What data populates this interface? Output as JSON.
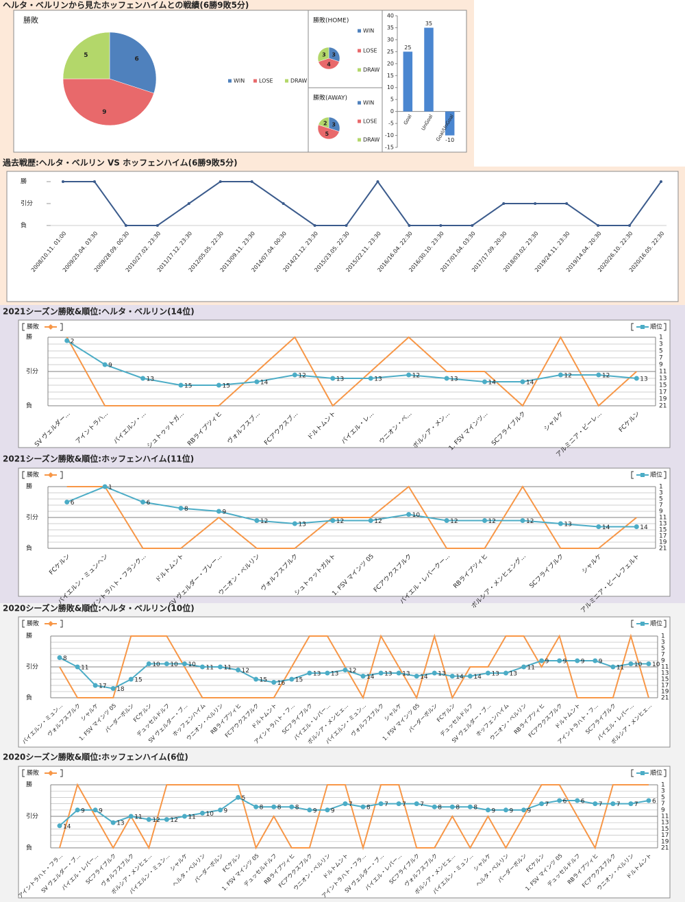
{
  "headings": [
    "ヘルタ・ベルリンから見たホッフェンハイムとの戦績(6勝9敗5分)",
    "過去戦歴:ヘルタ・ベルリン VS ホッフェンハイム(6勝9敗5分)",
    "2021シーズン勝敗&順位:ヘルタ・ベルリン(14位)",
    "2021シーズン勝敗&順位:ホッフェンハイム(11位)",
    "2020シーズン勝敗&順位:ヘルタ・ベルリン(10位)",
    "2020シーズン勝敗&順位:ホッフェンハイム(6位)"
  ],
  "chart_data": [
    {
      "type": "pie",
      "title": "勝敗",
      "categories": [
        "WIN",
        "LOSE",
        "DRAW"
      ],
      "values": [
        6,
        9,
        5
      ],
      "colors": [
        "#4f81bd",
        "#e8696b",
        "#b3d76a"
      ]
    },
    {
      "type": "pie",
      "title": "勝敗(HOME)",
      "categories": [
        "WIN",
        "LOSE",
        "DRAW"
      ],
      "values": [
        3,
        4,
        3
      ],
      "colors": [
        "#4f81bd",
        "#e8696b",
        "#b3d76a"
      ]
    },
    {
      "type": "pie",
      "title": "勝敗(AWAY)",
      "categories": [
        "WIN",
        "LOSE",
        "DRAW"
      ],
      "values": [
        3,
        5,
        2
      ],
      "colors": [
        "#4f81bd",
        "#e8696b",
        "#b3d76a"
      ]
    },
    {
      "type": "bar",
      "categories": [
        "Goal",
        "UnGoal",
        "Goal/UnGoal"
      ],
      "values": [
        25,
        35,
        -10
      ],
      "color": "#4a86d0",
      "ylim": [
        -15,
        40
      ],
      "yticks": [
        -15,
        -10,
        -5,
        0,
        5,
        10,
        15,
        20,
        25,
        30,
        35,
        40
      ]
    },
    {
      "type": "history",
      "color": "#3b5b8c",
      "categories": [
        "2008/10.11. 01:00",
        "2009/25.04. 03:30",
        "2009/28.09. 00:30",
        "2010/27.02. 23:30",
        "2011/17.12. 23:30",
        "2012/05.05. 22:30",
        "2013/09.11. 23:30",
        "2014/07.04. 00:30",
        "2014/21.12. 23:30",
        "2015/23.05. 22:30",
        "2015/22.11. 23:30",
        "2016/16.04. 22:30",
        "2016/30.10. 23:30",
        "2017/01.04. 03:30",
        "2017/17.09. 20:30",
        "2018/03.02. 23:30",
        "2019/24.11. 23:30",
        "2019/14.04. 20:30",
        "2020/26.10. 22:30",
        "2020/16.05. 22:30"
      ],
      "values": [
        1,
        1,
        -1,
        -1,
        0,
        1,
        1,
        0,
        -1,
        -1,
        1,
        -1,
        -1,
        -1,
        0,
        0,
        0,
        -1,
        -1,
        1
      ],
      "ylim": [
        -1,
        1
      ],
      "yticks": [
        {
          "value": 1,
          "label": "勝"
        },
        {
          "value": 0,
          "label": "引分"
        },
        {
          "value": -1,
          "label": "負"
        }
      ]
    },
    {
      "type": "season",
      "grid": true,
      "categories": [
        "SV ヴェルダー...",
        "アイントラハ...",
        "バイエルン・...",
        "シュトゥットガ...",
        "RBライプツィヒ",
        "ヴォルフスブ...",
        "FCアウクスブ...",
        "ドルトムント",
        "バイエル・レ...",
        "ウニオン・ベ...",
        "ボルシア・メン...",
        "1. FSV マインツ...",
        "SCフライブルク",
        "シャルケ",
        "アルミニア・ビーレ...",
        "FCケルン"
      ],
      "series": [
        {
          "name": "勝敗",
          "color": "#f79646",
          "values": [
            1,
            -1,
            -1,
            -1,
            -1,
            0,
            1,
            -1,
            0,
            1,
            0,
            0,
            -1,
            1,
            -1,
            0
          ]
        },
        {
          "name": "順位",
          "color": "#4bacc6",
          "axis": "y2",
          "values": [
            2,
            9,
            13,
            15,
            15,
            14,
            12,
            13,
            13,
            12,
            13,
            14,
            14,
            12,
            12,
            13
          ]
        }
      ],
      "ylim": [
        -1,
        1
      ],
      "yticks": [
        {
          "value": 1,
          "label": "勝"
        },
        {
          "value": 0,
          "label": "引分"
        },
        {
          "value": -1,
          "label": "負"
        }
      ],
      "y2lim": [
        21,
        1
      ],
      "y2ticks": [
        1,
        3,
        5,
        7,
        9,
        11,
        13,
        15,
        17,
        19,
        21
      ]
    },
    {
      "type": "season",
      "grid": true,
      "categories": [
        "FCケルン",
        "バイエルン・ミュンヘン",
        "アイントラハト・フランク...",
        "ドルトムント",
        "SV ヴェルダー・ブレー...",
        "ウニオン・ベルリン",
        "ヴォルフスブルク",
        "シュトゥットガルト",
        "1. FSV マインツ 05",
        "FCアウクスブルク",
        "バイエル・レバークー...",
        "RBライプツィヒ",
        "ボルシア・メンヒェング...",
        "SCフライブルク",
        "シャルケ",
        "アルミニア・ビーレフェルト"
      ],
      "series": [
        {
          "name": "勝敗",
          "color": "#f79646",
          "values": [
            1,
            1,
            -1,
            -1,
            0,
            -1,
            -1,
            0,
            0,
            1,
            -1,
            -1,
            1,
            -1,
            -1,
            0
          ]
        },
        {
          "name": "順位",
          "color": "#4bacc6",
          "axis": "y2",
          "values": [
            6,
            1,
            6,
            8,
            9,
            12,
            13,
            12,
            12,
            10,
            12,
            12,
            12,
            13,
            14,
            14
          ]
        }
      ],
      "ylim": [
        -1,
        1
      ],
      "yticks": [
        {
          "value": 1,
          "label": "勝"
        },
        {
          "value": 0,
          "label": "引分"
        },
        {
          "value": -1,
          "label": "負"
        }
      ],
      "y2lim": [
        21,
        1
      ],
      "y2ticks": [
        1,
        3,
        5,
        7,
        9,
        11,
        13,
        15,
        17,
        19,
        21
      ]
    },
    {
      "type": "season",
      "grid": true,
      "categories": [
        "バイエルン・ミュン...",
        "ヴォルフスブルク",
        "シャルケ",
        "1. FSV マインツ 05",
        "パーダーボルン",
        "FCケルン",
        "デュッセルドルフ",
        "SV ヴェルダー・ブ...",
        "ホッフェンハイム",
        "ウニオン・ベルリン",
        "RBライプツィヒ",
        "FCアウクスブルク",
        "ドルトムント",
        "アイントラハト・フ...",
        "SCフライブルク",
        "バイエル・レバー...",
        "ボルシア・メンヒェ...",
        "バイエルン・ミュン...",
        "ヴォルフスブルク",
        "シャルケ",
        "1. FSV マインツ 05",
        "パーダーボルン",
        "FCケルン",
        "デュッセルドルフ",
        "SV ヴェルダー・ブ...",
        "ホッフェンハイム",
        "ウニオン・ベルリン",
        "RBライプツィヒ",
        "FCアウクスブルク",
        "ドルトムント",
        "アイントラハト・フ...",
        "SCフライブルク",
        "バイエル・レバー...",
        "ボルシア・メンヒェ..."
      ],
      "series": [
        {
          "name": "勝敗",
          "color": "#f79646",
          "values": [
            0,
            -1,
            -1,
            -1,
            1,
            1,
            1,
            0,
            -1,
            -1,
            -1,
            -1,
            -1,
            0,
            1,
            1,
            0,
            -1,
            1,
            0,
            -1,
            1,
            -1,
            0,
            0,
            1,
            1,
            0,
            1,
            -1,
            -1,
            -1,
            1,
            -1
          ]
        },
        {
          "name": "順位",
          "color": "#4bacc6",
          "axis": "y2",
          "values": [
            8,
            11,
            17,
            18,
            15,
            10,
            10,
            10,
            11,
            11,
            12,
            15,
            16,
            15,
            13,
            13,
            12,
            14,
            13,
            13,
            14,
            13,
            14,
            14,
            13,
            13,
            11,
            9,
            9,
            9,
            9,
            11,
            10,
            10
          ]
        }
      ],
      "ylim": [
        -1,
        1
      ],
      "yticks": [
        {
          "value": 1,
          "label": "勝"
        },
        {
          "value": 0,
          "label": "引分"
        },
        {
          "value": -1,
          "label": "負"
        }
      ],
      "y2lim": [
        21,
        1
      ],
      "y2ticks": [
        1,
        3,
        5,
        7,
        9,
        11,
        13,
        15,
        17,
        19,
        21
      ]
    },
    {
      "type": "season",
      "grid": true,
      "categories": [
        "アイントラハト・フラ...",
        "SV ヴェルダー・ブ...",
        "バイエル・レバー...",
        "SCフライブルク",
        "ヴォルフスブルク",
        "ボルシア・メンヒェ...",
        "バイエルン・ミュン...",
        "シャルケ",
        "ヘルタ・ベルリン",
        "パーダーボルン",
        "FCケルン",
        "1. FSV マインツ 05",
        "デュッセルドルフ",
        "RBライプツィヒ",
        "FCアウクスブルク",
        "ウニオン・ベルリン",
        "ドルトムント",
        "アイントラハト・フラ...",
        "SV ヴェルダー・ブ...",
        "バイエル・レバー...",
        "SCフライブルク",
        "ヴォルフスブルク",
        "ボルシア・メンヒェ...",
        "バイエルン・ミュン...",
        "シャルケ",
        "ヘルタ・ベルリン",
        "パーダーボルン",
        "FCケルン",
        "1. FSV マインツ 05",
        "デュッセルドルフ",
        "RBライプツィヒ",
        "FCアウクスブルク",
        "ウニオン・ベルリン",
        "ドルトムント"
      ],
      "series": [
        {
          "name": "勝敗",
          "color": "#f79646",
          "values": [
            -1,
            1,
            0,
            -1,
            0,
            -1,
            1,
            1,
            1,
            1,
            1,
            -1,
            0,
            -1,
            -1,
            1,
            1,
            -1,
            1,
            1,
            -1,
            -1,
            0,
            -1,
            0,
            -1,
            0,
            1,
            1,
            0,
            -1,
            1,
            1,
            1
          ]
        },
        {
          "name": "順位",
          "color": "#4bacc6",
          "axis": "y2",
          "values": [
            14,
            9,
            9,
            13,
            11,
            12,
            12,
            11,
            10,
            9,
            5,
            8,
            8,
            8,
            9,
            9,
            7,
            8,
            7,
            7,
            7,
            8,
            8,
            8,
            9,
            9,
            9,
            7,
            6,
            6,
            7,
            7,
            7,
            6
          ]
        }
      ],
      "ylim": [
        -1,
        1
      ],
      "yticks": [
        {
          "value": 1,
          "label": "勝"
        },
        {
          "value": 0,
          "label": "引分"
        },
        {
          "value": -1,
          "label": "負"
        }
      ],
      "y2lim": [
        21,
        1
      ],
      "y2ticks": [
        1,
        3,
        5,
        7,
        9,
        11,
        13,
        15,
        17,
        19,
        21
      ]
    }
  ]
}
